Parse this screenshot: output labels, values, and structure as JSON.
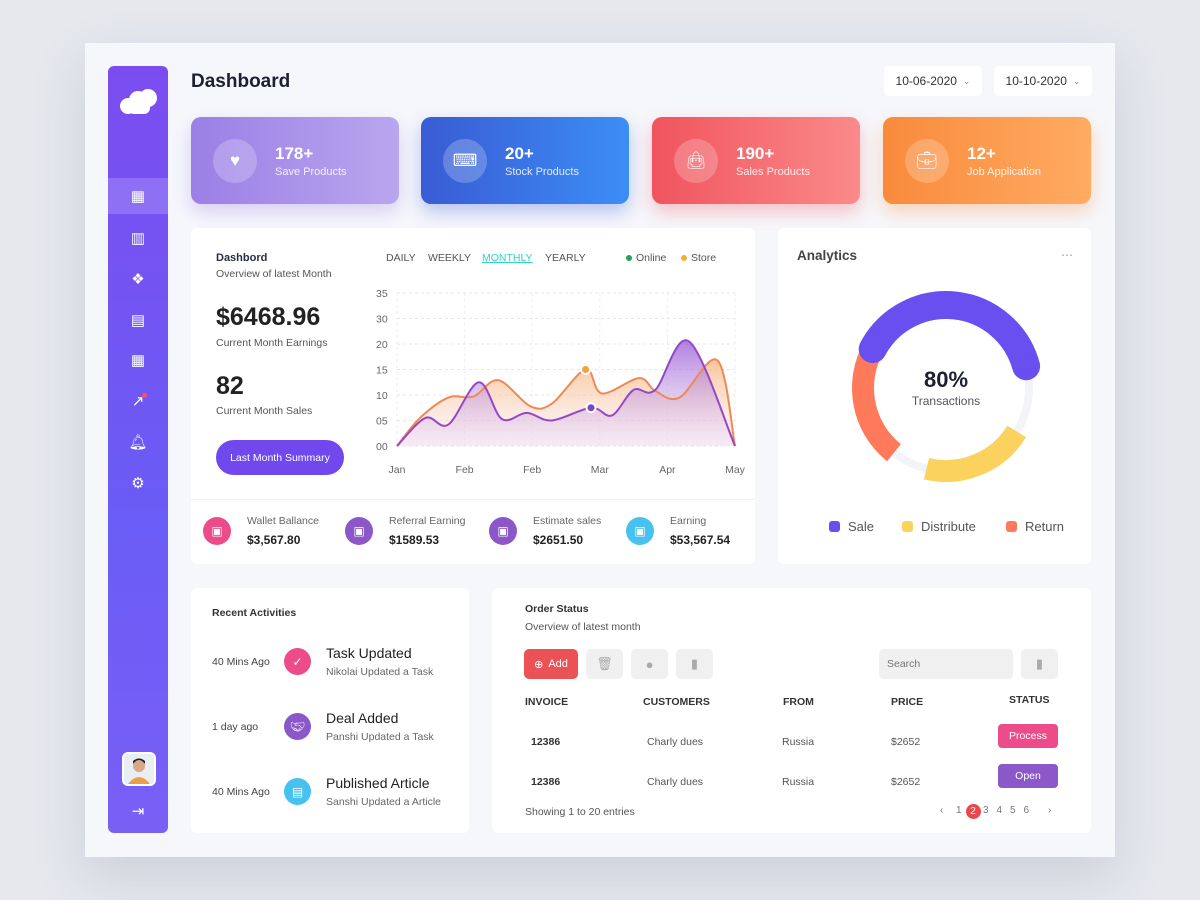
{
  "header": {
    "title": "Dashboard",
    "date_from": "10-06-2020",
    "date_to": "10-10-2020"
  },
  "sidebar": {
    "items": [
      {
        "icon": "grid-icon",
        "active": true
      },
      {
        "icon": "bar-chart-icon"
      },
      {
        "icon": "apps-icon"
      },
      {
        "icon": "document-icon"
      },
      {
        "icon": "calendar-icon"
      },
      {
        "icon": "trend-icon",
        "badge": true
      },
      {
        "icon": "bell-icon"
      },
      {
        "icon": "gear-icon"
      }
    ],
    "logout_icon": "logout-icon"
  },
  "stats": [
    {
      "value": "178+",
      "label": "Save Products",
      "icon": "heart-icon",
      "color_from": "#9b7fe6",
      "color_to": "#b9a6ee"
    },
    {
      "value": "20+",
      "label": "Stock Products",
      "icon": "gamepad-icon",
      "color_from": "#3a5bd4",
      "color_to": "#3b8ef5"
    },
    {
      "value": "190+",
      "label": "Sales Products",
      "icon": "bag-icon",
      "color_from": "#f0545e",
      "color_to": "#fb8a8a"
    },
    {
      "value": "12+",
      "label": "Job Application",
      "icon": "briefcase-icon",
      "color_from": "#f98a3c",
      "color_to": "#ffab62"
    }
  ],
  "overview": {
    "title": "Dashbord",
    "subtitle": "Overview of latest Month",
    "earnings": "$6468.96",
    "earnings_label": "Current Month Earnings",
    "sales": "82",
    "sales_label": "Current Month Sales",
    "button": "Last Month Summary",
    "tabs": [
      "DAILY",
      "WEEKLY",
      "MONTHLY",
      "YEARLY"
    ],
    "active_tab": "MONTHLY"
  },
  "chart_data": {
    "type": "area",
    "x_ticks": [
      "Jan",
      "Feb",
      "Feb",
      "Mar",
      "Apr",
      "May"
    ],
    "y_ticks": [
      "35",
      "30",
      "20",
      "15",
      "10",
      "05",
      "00"
    ],
    "grid": true,
    "legend_position": "top-right",
    "series": [
      {
        "name": "Store",
        "color": "#f0a24a",
        "x": [
          0,
          0.34,
          0.76,
          1.13,
          1.5,
          1.97,
          2.29,
          2.79,
          3.03,
          3.58,
          3.82,
          4.18,
          4.74,
          5
        ],
        "y": [
          0,
          5.5,
          9.5,
          9.7,
          12.9,
          7.8,
          8.3,
          15,
          10.3,
          13.3,
          10.8,
          9.5,
          16.8,
          0
        ],
        "marker": {
          "x": 2.79,
          "y": 15
        }
      },
      {
        "name": "Online",
        "color": "#8a4fd0",
        "legend_color": "#22a55a",
        "x": [
          0,
          0.42,
          0.76,
          1.21,
          1.55,
          1.92,
          2.29,
          2.87,
          3.18,
          3.5,
          3.82,
          4.32,
          5
        ],
        "y": [
          0,
          5.5,
          4.2,
          12.5,
          5.3,
          6.5,
          5,
          7.5,
          6,
          11,
          11,
          20.5,
          0
        ],
        "marker": {
          "x": 2.87,
          "y": 7.5
        }
      }
    ]
  },
  "summary": [
    {
      "label": "Wallet Ballance",
      "value": "$3,567.80",
      "icon": "wallet-icon",
      "color": "#ec4d8a"
    },
    {
      "label": "Referral Earning",
      "value": "$1589.53",
      "icon": "wallet-icon",
      "color": "#8b57c9"
    },
    {
      "label": "Estimate sales",
      "value": "$2651.50",
      "icon": "card-icon",
      "color": "#8b57c9"
    },
    {
      "label": "Earning",
      "value": "$53,567.54",
      "icon": "card-icon",
      "color": "#47c2f0"
    }
  ],
  "analytics": {
    "title": "Analytics",
    "menu_icon": "more-icon",
    "value": "80%",
    "label": "Transactions",
    "segments": [
      {
        "name": "Sale",
        "color": "#6a4ff0",
        "share": 0.38
      },
      {
        "name": "Distribute",
        "color": "#fcd25f",
        "share": 0.2
      },
      {
        "name": "Return",
        "color": "#ff7a5a",
        "share": 0.24
      }
    ]
  },
  "activities": {
    "title": "Recent Activities",
    "items": [
      {
        "time": "40 Mins Ago",
        "title": "Task Updated",
        "sub": "Nikolai Updated a Task",
        "icon": "check-icon",
        "color": "#ec4d8a"
      },
      {
        "time": "1 day ago",
        "title": "Deal Added",
        "sub": "Panshi Updated a Task",
        "icon": "handshake-icon",
        "color": "#8b57c9"
      },
      {
        "time": "40 Mins Ago",
        "title": "Published Article",
        "sub": "Sanshi Updated a Article",
        "icon": "article-icon",
        "color": "#47c2f0"
      }
    ]
  },
  "orders": {
    "title": "Order Status",
    "subtitle": "Overview of latest month",
    "add": "Add",
    "search_placeholder": "Search",
    "columns": [
      "INVOICE",
      "CUSTOMERS",
      "FROM",
      "PRICE",
      "STATUS"
    ],
    "rows": [
      {
        "invoice": "12386",
        "customer": "Charly dues",
        "from": "Russia",
        "price": "$2652",
        "status": "Process",
        "status_color": "#ec4d8a"
      },
      {
        "invoice": "12386",
        "customer": "Charly dues",
        "from": "Russia",
        "price": "$2652",
        "status": "Open",
        "status_color": "#8b57c9"
      }
    ],
    "showing": "Showing 1 to 20 entries",
    "pages": [
      "1",
      "2",
      "3",
      "4",
      "5",
      "6"
    ],
    "current_page": "2"
  }
}
